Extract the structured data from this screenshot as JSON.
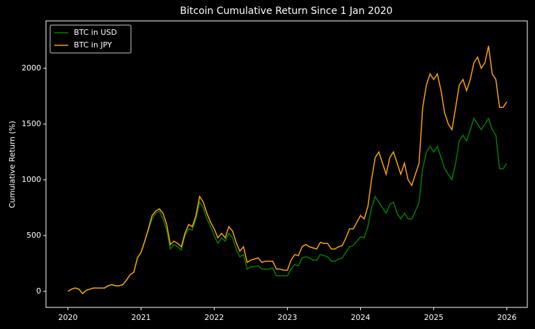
{
  "chart_data": {
    "type": "line",
    "title": "Bitcoin Cumulative Return Since 1 Jan 2020",
    "y_label": "Cumulative Return (%)",
    "x": [
      2020.0,
      2020.05,
      2020.1,
      2020.15,
      2020.2,
      2020.25,
      2020.3,
      2020.35,
      2020.4,
      2020.45,
      2020.5,
      2020.55,
      2020.6,
      2020.65,
      2020.7,
      2020.75,
      2020.8,
      2020.85,
      2020.9,
      2020.95,
      2021.0,
      2021.05,
      2021.1,
      2021.15,
      2021.2,
      2021.25,
      2021.3,
      2021.35,
      2021.4,
      2021.45,
      2021.5,
      2021.55,
      2021.6,
      2021.65,
      2021.7,
      2021.75,
      2021.8,
      2021.85,
      2021.9,
      2021.95,
      2022.0,
      2022.05,
      2022.1,
      2022.15,
      2022.2,
      2022.25,
      2022.3,
      2022.35,
      2022.4,
      2022.45,
      2022.5,
      2022.55,
      2022.6,
      2022.65,
      2022.7,
      2022.75,
      2022.8,
      2022.85,
      2022.9,
      2022.95,
      2023.0,
      2023.05,
      2023.1,
      2023.15,
      2023.2,
      2023.25,
      2023.3,
      2023.35,
      2023.4,
      2023.45,
      2023.5,
      2023.55,
      2023.6,
      2023.65,
      2023.7,
      2023.75,
      2023.8,
      2023.85,
      2023.9,
      2023.95,
      2024.0,
      2024.05,
      2024.1,
      2024.15,
      2024.2,
      2024.25,
      2024.3,
      2024.35,
      2024.4,
      2024.45,
      2024.5,
      2024.55,
      2024.6,
      2024.65,
      2024.7,
      2024.75,
      2024.8,
      2024.85,
      2024.9,
      2024.95,
      2025.0,
      2025.05,
      2025.1,
      2025.15,
      2025.2,
      2025.25,
      2025.3,
      2025.35,
      2025.4,
      2025.45,
      2025.5,
      2025.55,
      2025.6,
      2025.65,
      2025.7,
      2025.75,
      2025.8,
      2025.85,
      2025.9,
      2025.95,
      2026.0
    ],
    "series": [
      {
        "name": "BTC in USD",
        "color": "#008000",
        "values": [
          0,
          20,
          30,
          20,
          -20,
          10,
          20,
          30,
          30,
          30,
          30,
          50,
          60,
          50,
          50,
          60,
          100,
          150,
          170,
          300,
          350,
          450,
          550,
          650,
          700,
          720,
          650,
          550,
          380,
          420,
          400,
          370,
          500,
          560,
          550,
          650,
          800,
          750,
          650,
          580,
          500,
          430,
          480,
          450,
          520,
          480,
          380,
          310,
          330,
          200,
          220,
          220,
          230,
          200,
          200,
          200,
          210,
          140,
          140,
          140,
          140,
          200,
          240,
          230,
          300,
          310,
          300,
          280,
          280,
          330,
          320,
          310,
          270,
          270,
          290,
          300,
          350,
          400,
          410,
          450,
          490,
          480,
          580,
          750,
          850,
          800,
          750,
          700,
          780,
          800,
          700,
          650,
          700,
          650,
          650,
          720,
          800,
          1100,
          1250,
          1300,
          1250,
          1300,
          1200,
          1100,
          1050,
          1000,
          1150,
          1350,
          1400,
          1350,
          1450,
          1550,
          1500,
          1450,
          1500,
          1550,
          1450,
          1400,
          1100,
          1100,
          1150
        ]
      },
      {
        "name": "BTC in JPY",
        "color": "#ffa500",
        "values": [
          0,
          20,
          30,
          20,
          -20,
          10,
          20,
          30,
          30,
          30,
          30,
          50,
          60,
          50,
          50,
          60,
          100,
          150,
          170,
          300,
          350,
          450,
          560,
          680,
          720,
          740,
          700,
          600,
          420,
          450,
          430,
          400,
          520,
          600,
          580,
          680,
          850,
          800,
          700,
          620,
          560,
          480,
          520,
          480,
          580,
          540,
          440,
          360,
          400,
          260,
          280,
          290,
          300,
          260,
          270,
          270,
          270,
          200,
          200,
          190,
          190,
          280,
          330,
          320,
          400,
          420,
          400,
          390,
          380,
          440,
          430,
          430,
          380,
          380,
          400,
          410,
          480,
          560,
          560,
          620,
          680,
          650,
          760,
          1000,
          1200,
          1250,
          1150,
          1050,
          1200,
          1250,
          1150,
          1050,
          1150,
          1000,
          950,
          1050,
          1150,
          1650,
          1850,
          1950,
          1900,
          1950,
          1800,
          1600,
          1500,
          1450,
          1650,
          1850,
          1900,
          1800,
          1900,
          2050,
          2100,
          2000,
          2050,
          2200,
          1950,
          1900,
          1650,
          1650,
          1700
        ]
      }
    ],
    "xlim": [
      2019.7,
      2026.28
    ],
    "xticks": [
      2020,
      2021,
      2022,
      2023,
      2024,
      2025,
      2026
    ],
    "ylim": [
      -144,
      2425
    ],
    "yticks": [
      0,
      500,
      1000,
      1500,
      2000
    ],
    "legend": "upper left"
  }
}
